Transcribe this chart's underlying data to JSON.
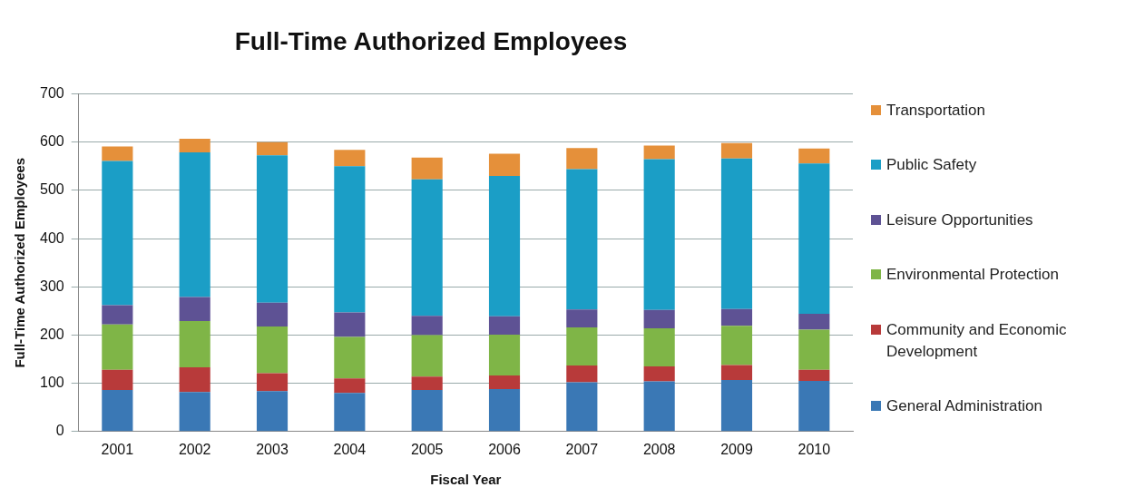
{
  "chart_data": {
    "type": "bar",
    "title": "Full-Time Authorized Employees",
    "xlabel": "Fiscal Year",
    "ylabel": "Full-Time Authorized Employees",
    "categories": [
      "2001",
      "2002",
      "2003",
      "2004",
      "2005",
      "2006",
      "2007",
      "2008",
      "2009",
      "2010"
    ],
    "stacked": true,
    "ylim": [
      0,
      700
    ],
    "yticks": [
      0,
      100,
      200,
      300,
      400,
      500,
      600,
      700
    ],
    "grid": "y",
    "legend": "right",
    "series": [
      {
        "name": "General Administration",
        "color": "#3a78b5",
        "values": [
          86,
          82,
          84,
          80,
          86,
          88,
          102,
          104,
          107,
          105
        ]
      },
      {
        "name": "Community and Economic Development",
        "color": "#b83a3a",
        "values": [
          42,
          51,
          37,
          30,
          28,
          28,
          35,
          31,
          31,
          23
        ]
      },
      {
        "name": "Environmental Protection",
        "color": "#7fb547",
        "values": [
          94,
          96,
          97,
          86,
          86,
          85,
          79,
          79,
          81,
          83
        ]
      },
      {
        "name": "Leisure Opportunities",
        "color": "#5e5294",
        "values": [
          40,
          50,
          49,
          51,
          40,
          38,
          37,
          38,
          35,
          33
        ]
      },
      {
        "name": "Public Safety",
        "color": "#1b9ec6",
        "values": [
          299,
          300,
          306,
          303,
          283,
          291,
          291,
          313,
          312,
          312
        ]
      },
      {
        "name": "Transportation",
        "color": "#e5903a",
        "values": [
          30,
          28,
          27,
          34,
          45,
          46,
          44,
          28,
          32,
          31
        ]
      }
    ]
  }
}
